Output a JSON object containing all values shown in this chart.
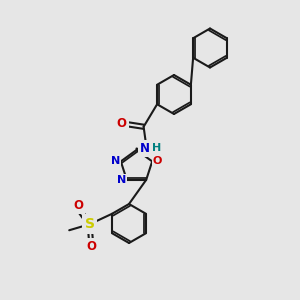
{
  "bg_color": "#e6e6e6",
  "line_color": "#1a1a1a",
  "bond_width": 1.5,
  "atom_colors": {
    "N": "#0000cc",
    "O": "#cc0000",
    "S": "#cccc00",
    "H": "#008080",
    "C": "#1a1a1a"
  },
  "figsize": [
    3.0,
    3.0
  ],
  "dpi": 100,
  "xlim": [
    0,
    10
  ],
  "ylim": [
    0,
    10
  ]
}
